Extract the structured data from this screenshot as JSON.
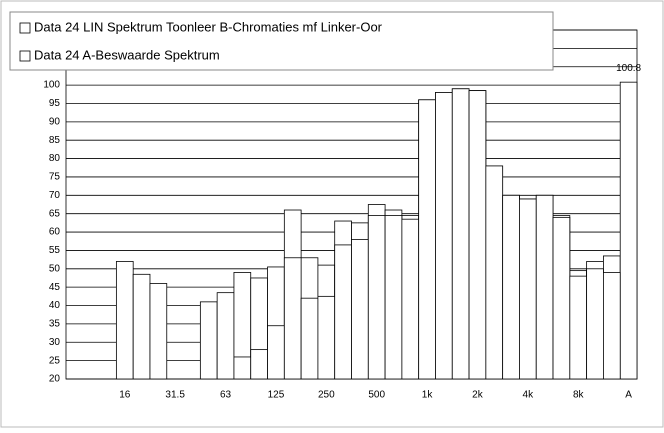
{
  "chart_data": {
    "type": "bar",
    "categories": [
      null,
      null,
      null,
      "16",
      null,
      null,
      "31.5",
      null,
      null,
      "63",
      null,
      null,
      "125",
      null,
      null,
      "250",
      null,
      null,
      "500",
      null,
      null,
      "1k",
      null,
      null,
      "2k",
      null,
      null,
      "4k",
      null,
      null,
      "8k",
      null,
      null,
      "A"
    ],
    "series": [
      {
        "name": "Data 24 LIN Spektrum Toonleer B-Chromaties mf Linker-Oor",
        "color": "#ffffff",
        "values": [
          null,
          null,
          null,
          52,
          48.5,
          46,
          null,
          null,
          41,
          43.5,
          49,
          47.5,
          50.5,
          66,
          53,
          51,
          63,
          62.5,
          67.5,
          66,
          64.5,
          96,
          98,
          99,
          98.5,
          78,
          70,
          69,
          70,
          64.5,
          49.5,
          52,
          53.5,
          100.8
        ],
        "value_labels": [
          null,
          null,
          null,
          null,
          null,
          null,
          null,
          null,
          null,
          null,
          null,
          null,
          null,
          null,
          null,
          null,
          null,
          null,
          null,
          null,
          null,
          null,
          null,
          null,
          null,
          null,
          null,
          null,
          null,
          null,
          null,
          null,
          null,
          "100.8"
        ]
      },
      {
        "name": "Data 24 A-Beswaarde Spektrum",
        "color": "#ffffff",
        "values": [
          null,
          null,
          null,
          null,
          null,
          null,
          null,
          null,
          null,
          null,
          26,
          28,
          34.5,
          53,
          42,
          42.5,
          56.5,
          58,
          64.5,
          64.5,
          63.5,
          96,
          98,
          99,
          98.5,
          78,
          70,
          69,
          70,
          64,
          48,
          50,
          49,
          null
        ]
      }
    ],
    "ylim": [
      20,
      115
    ],
    "yticks": [
      20,
      25,
      30,
      35,
      40,
      45,
      50,
      55,
      60,
      65,
      70,
      75,
      80,
      85,
      90,
      95,
      100,
      105,
      110,
      115
    ],
    "grid": true
  }
}
